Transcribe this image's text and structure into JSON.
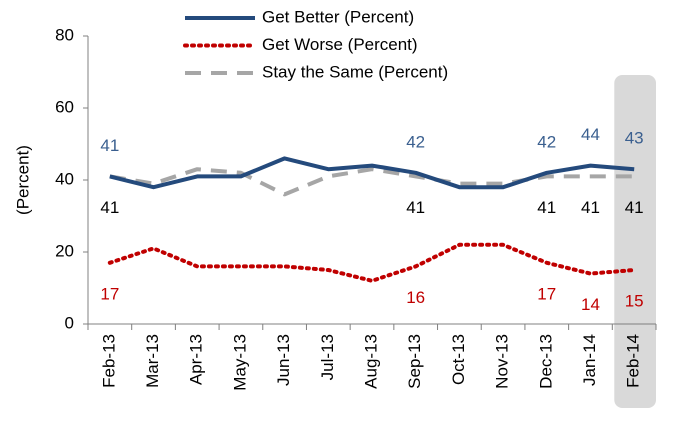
{
  "chart_data": {
    "type": "line",
    "y_label": "(Percent)",
    "categories": [
      "Feb-13",
      "Mar-13",
      "Apr-13",
      "May-13",
      "Jun-13",
      "Jul-13",
      "Aug-13",
      "Sep-13",
      "Oct-13",
      "Nov-13",
      "Dec-13",
      "Jan-14",
      "Feb-14"
    ],
    "series": [
      {
        "name": "Get Better (Percent)",
        "color": "#244a7c",
        "label_color": "#3a5f8f",
        "style": "solid",
        "values": [
          41,
          38,
          41,
          41,
          46,
          43,
          44,
          42,
          38,
          38,
          42,
          44,
          43
        ],
        "value_labels": [
          "41",
          null,
          null,
          null,
          null,
          null,
          null,
          "42",
          null,
          null,
          "42",
          "44",
          "43"
        ]
      },
      {
        "name": "Get Worse (Percent)",
        "color": "#c00000",
        "label_color": "#c00000",
        "style": "dotted",
        "values": [
          17,
          21,
          16,
          16,
          16,
          15,
          12,
          16,
          22,
          22,
          17,
          14,
          15
        ],
        "value_labels": [
          "17",
          null,
          null,
          null,
          null,
          null,
          null,
          "16",
          null,
          null,
          "17",
          "14",
          "15"
        ]
      },
      {
        "name": "Stay the Same (Percent)",
        "color": "#a6a6a6",
        "label_color": "#000000",
        "style": "dashed",
        "values": [
          41,
          39,
          43,
          42,
          36,
          41,
          43,
          41,
          39,
          39,
          41,
          41,
          41
        ],
        "value_labels": [
          "41",
          null,
          null,
          null,
          null,
          null,
          null,
          "41",
          null,
          null,
          "41",
          "41",
          "41"
        ]
      }
    ],
    "ylim": [
      0,
      80
    ],
    "yticks": [
      0,
      20,
      40,
      60,
      80
    ],
    "grid": false
  }
}
